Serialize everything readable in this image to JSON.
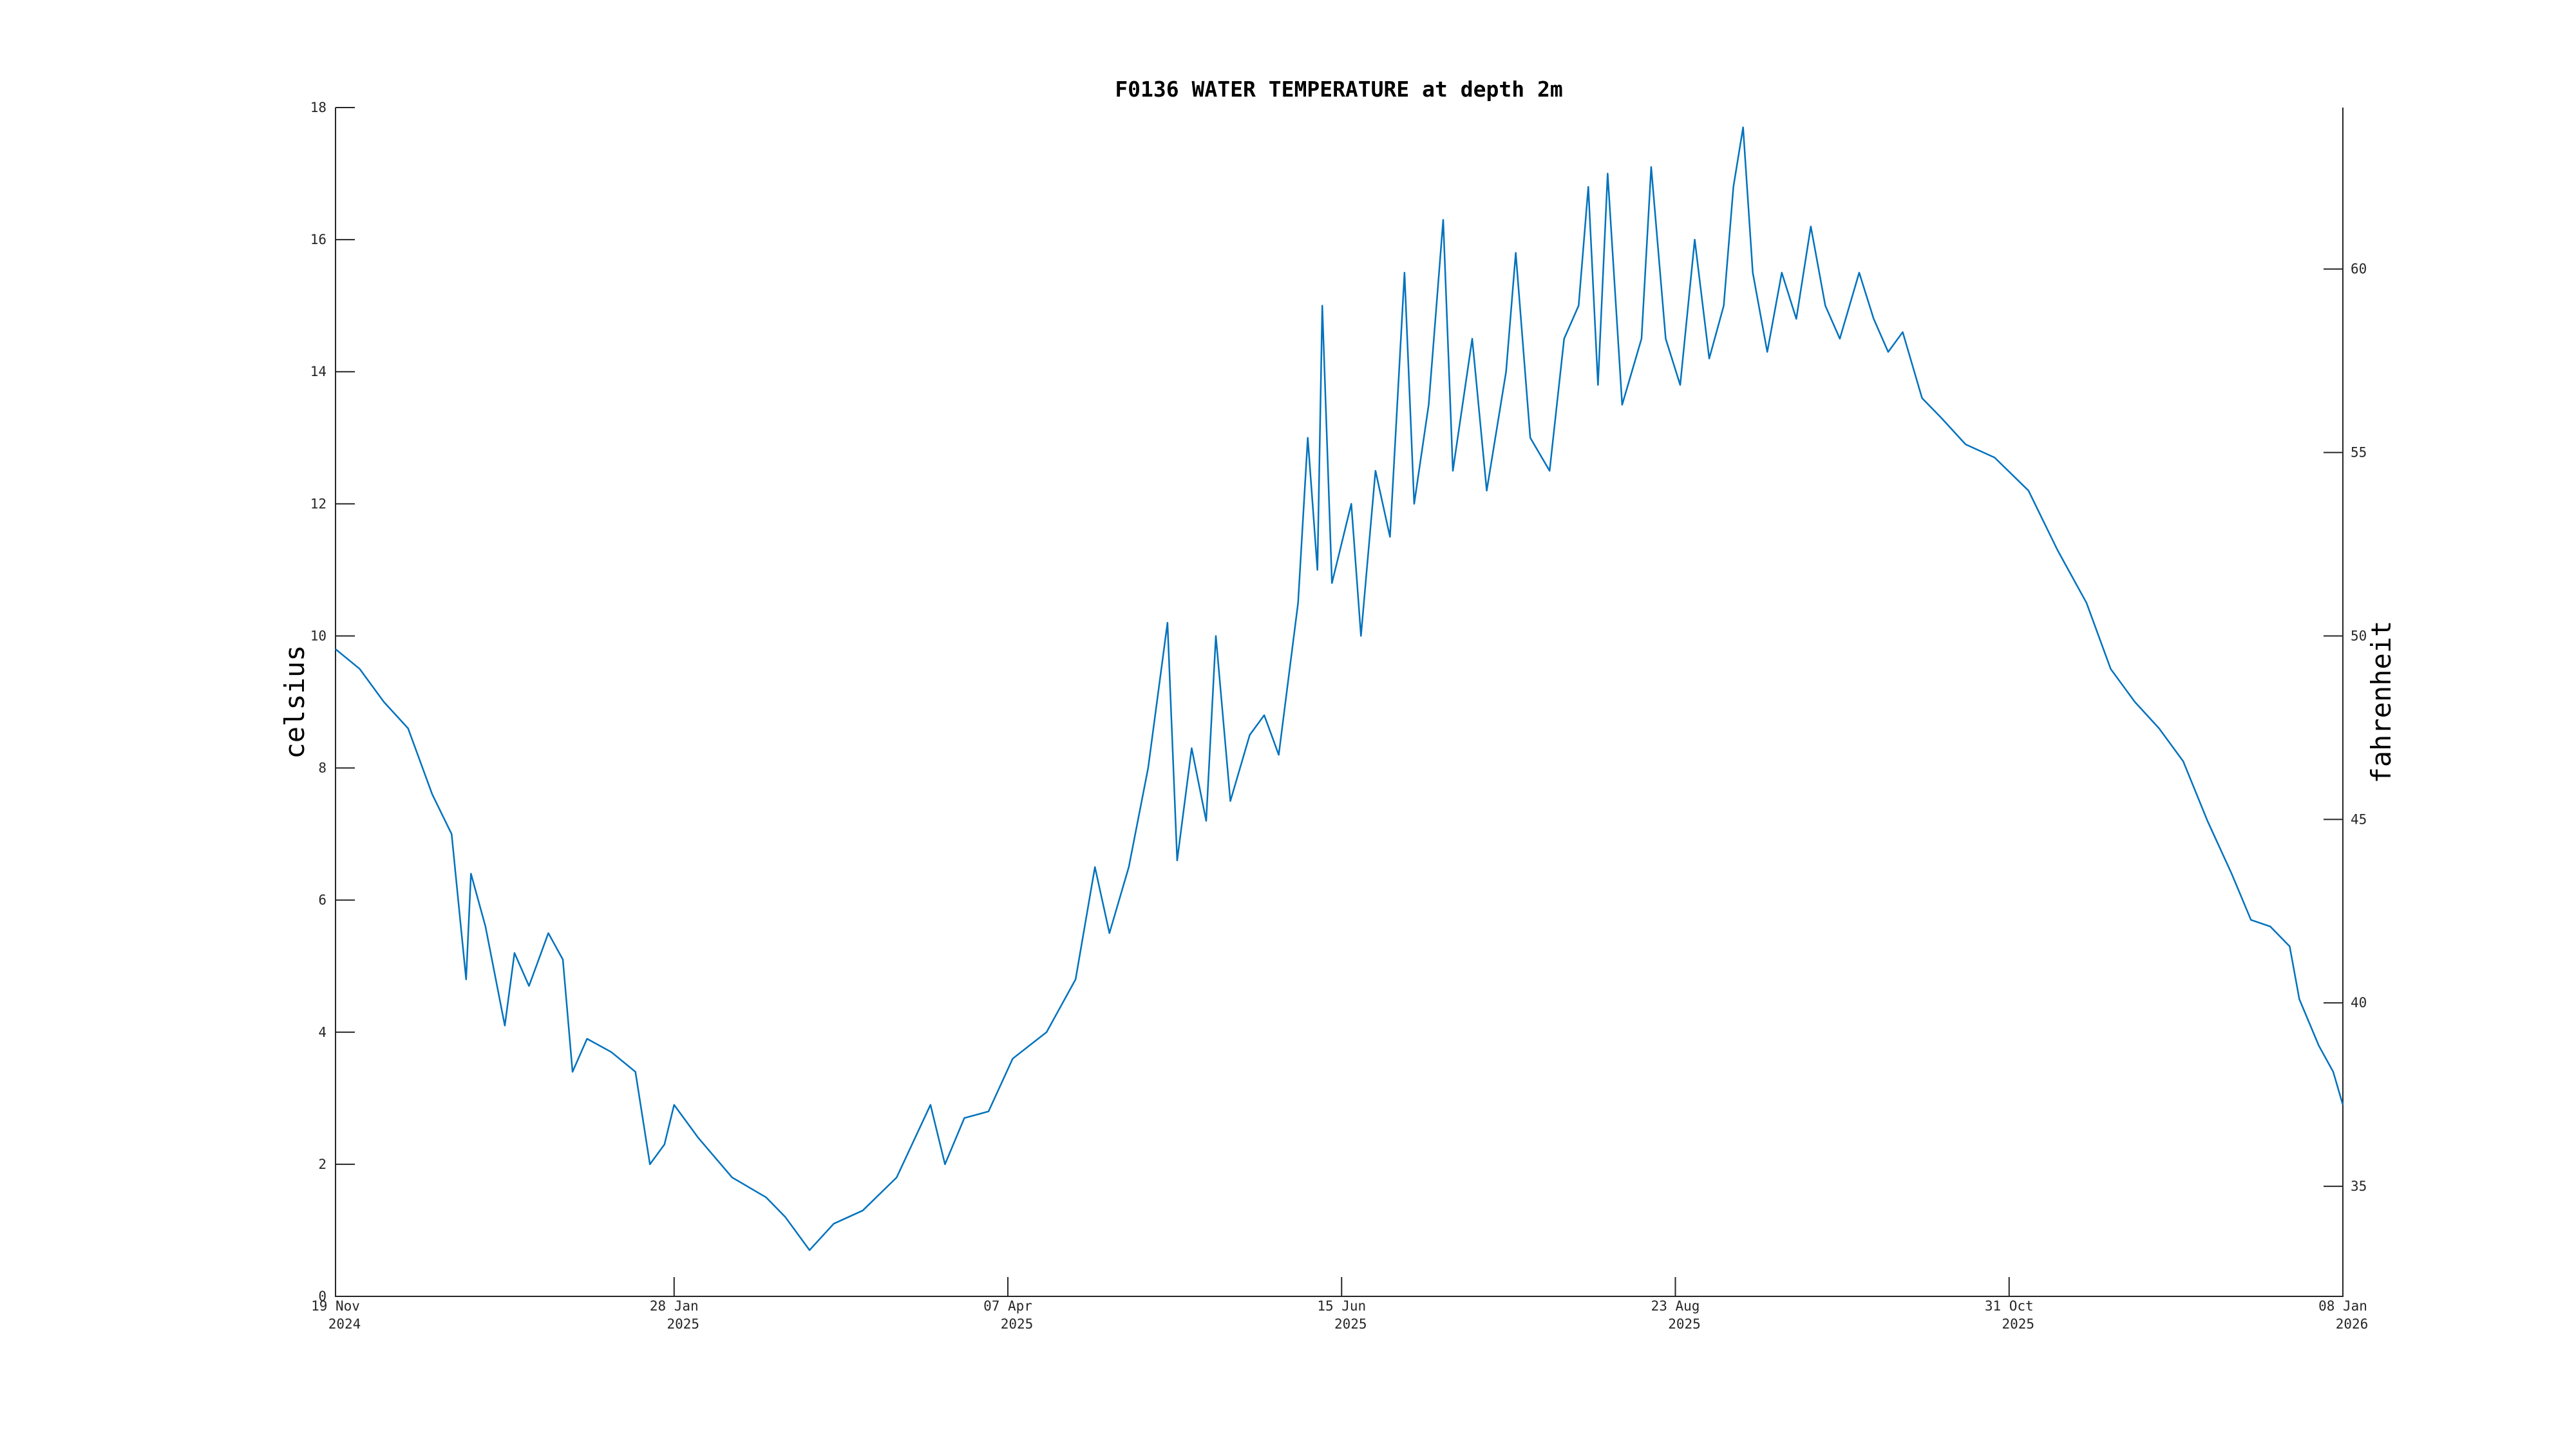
{
  "chart_data": {
    "type": "line",
    "title": "F0136 WATER TEMPERATURE at depth 2m",
    "ylabel": "celsius",
    "y2label": "fahrenheit",
    "color": "#0072bd",
    "x": [
      "2024-11-19",
      "2024-11-24",
      "2024-11-29",
      "2024-12-04",
      "2024-12-09",
      "2024-12-13",
      "2024-12-16",
      "2024-12-17",
      "2024-12-20",
      "2024-12-24",
      "2024-12-26",
      "2024-12-29",
      "2025-01-02",
      "2025-01-05",
      "2025-01-07",
      "2025-01-10",
      "2025-01-15",
      "2025-01-20",
      "2025-01-23",
      "2025-01-26",
      "2025-01-28",
      "2025-02-02",
      "2025-02-09",
      "2025-02-16",
      "2025-02-20",
      "2025-02-25",
      "2025-03-02",
      "2025-03-08",
      "2025-03-15",
      "2025-03-22",
      "2025-03-25",
      "2025-03-29",
      "2025-04-03",
      "2025-04-08",
      "2025-04-15",
      "2025-04-21",
      "2025-04-25",
      "2025-04-28",
      "2025-05-02",
      "2025-05-06",
      "2025-05-10",
      "2025-05-12",
      "2025-05-15",
      "2025-05-18",
      "2025-05-20",
      "2025-05-23",
      "2025-05-27",
      "2025-05-30",
      "2025-06-02",
      "2025-06-06",
      "2025-06-08",
      "2025-06-10",
      "2025-06-11",
      "2025-06-13",
      "2025-06-17",
      "2025-06-19",
      "2025-06-22",
      "2025-06-25",
      "2025-06-28",
      "2025-06-30",
      "2025-07-03",
      "2025-07-06",
      "2025-07-08",
      "2025-07-12",
      "2025-07-15",
      "2025-07-19",
      "2025-07-21",
      "2025-07-24",
      "2025-07-28",
      "2025-07-31",
      "2025-08-03",
      "2025-08-05",
      "2025-08-07",
      "2025-08-09",
      "2025-08-12",
      "2025-08-16",
      "2025-08-18",
      "2025-08-21",
      "2025-08-24",
      "2025-08-27",
      "2025-08-30",
      "2025-09-02",
      "2025-09-04",
      "2025-09-06",
      "2025-09-08",
      "2025-09-11",
      "2025-09-14",
      "2025-09-17",
      "2025-09-20",
      "2025-09-23",
      "2025-09-26",
      "2025-09-30",
      "2025-10-03",
      "2025-10-06",
      "2025-10-09",
      "2025-10-13",
      "2025-10-17",
      "2025-10-22",
      "2025-10-28",
      "2025-11-04",
      "2025-11-10",
      "2025-11-16",
      "2025-11-21",
      "2025-11-26",
      "2025-12-01",
      "2025-12-06",
      "2025-12-11",
      "2025-12-16",
      "2025-12-20",
      "2025-12-24",
      "2025-12-28",
      "2025-12-30",
      "2026-01-03",
      "2026-01-06",
      "2026-01-08"
    ],
    "values": [
      9.8,
      9.5,
      9.0,
      8.6,
      7.6,
      7.0,
      4.8,
      6.4,
      5.6,
      4.1,
      5.2,
      4.7,
      5.5,
      5.1,
      3.4,
      3.9,
      3.7,
      3.4,
      2.0,
      2.3,
      2.9,
      2.4,
      1.8,
      1.5,
      1.2,
      0.7,
      1.1,
      1.3,
      1.8,
      2.9,
      2.0,
      2.7,
      2.8,
      3.6,
      4.0,
      4.8,
      6.5,
      5.5,
      6.5,
      8.0,
      10.2,
      6.6,
      8.3,
      7.2,
      10.0,
      7.5,
      8.5,
      8.8,
      8.2,
      10.5,
      13.0,
      11.0,
      15.0,
      10.8,
      12.0,
      10.0,
      12.5,
      11.5,
      15.5,
      12.0,
      13.5,
      16.3,
      12.5,
      14.5,
      12.2,
      14.0,
      15.8,
      13.0,
      12.5,
      14.5,
      15.0,
      16.8,
      13.8,
      17.0,
      13.5,
      14.5,
      17.1,
      14.5,
      13.8,
      16.0,
      14.2,
      15.0,
      16.8,
      17.7,
      15.5,
      14.3,
      15.5,
      14.8,
      16.2,
      15.0,
      14.5,
      15.5,
      14.8,
      14.3,
      14.6,
      13.6,
      13.3,
      12.9,
      12.7,
      12.2,
      11.3,
      10.5,
      9.5,
      9.0,
      8.6,
      8.1,
      7.2,
      6.4,
      5.7,
      5.6,
      5.3,
      4.5,
      3.8,
      3.4,
      2.9
    ],
    "xlim": [
      "2024-11-19",
      "2026-01-08"
    ],
    "xticks": [
      {
        "value": "2024-11-19",
        "label": [
          "19 Nov",
          "2024"
        ]
      },
      {
        "value": "2025-01-28",
        "label": [
          "28 Jan",
          "2025"
        ]
      },
      {
        "value": "2025-04-07",
        "label": [
          "07 Apr",
          "2025"
        ]
      },
      {
        "value": "2025-06-15",
        "label": [
          "15 Jun",
          "2025"
        ]
      },
      {
        "value": "2025-08-23",
        "label": [
          "23 Aug",
          "2025"
        ]
      },
      {
        "value": "2025-10-31",
        "label": [
          "31 Oct",
          "2025"
        ]
      },
      {
        "value": "2026-01-08",
        "label": [
          "08 Jan",
          "2026"
        ]
      }
    ],
    "ylim": [
      0,
      18
    ],
    "yticks": [
      0,
      2,
      4,
      6,
      8,
      10,
      12,
      14,
      16,
      18
    ],
    "y2lim": [
      32,
      64.4
    ],
    "y2ticks": [
      35,
      40,
      45,
      50,
      55,
      60
    ]
  }
}
